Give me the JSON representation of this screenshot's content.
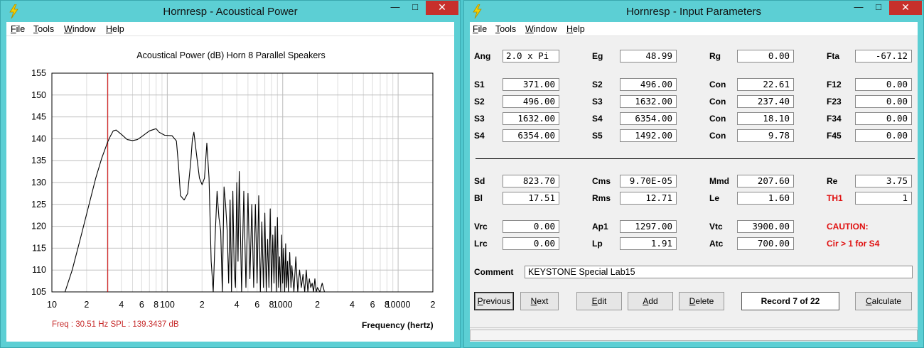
{
  "left_window": {
    "title": "Hornresp - Acoustical Power",
    "controls": {
      "minimize": "—",
      "maximize": "□",
      "close": "✕"
    },
    "menu": [
      {
        "label": "File",
        "key": "F",
        "rest": "ile"
      },
      {
        "label": "Tools",
        "key": "T",
        "rest": "ools"
      },
      {
        "label": "Window",
        "key": "W",
        "rest": "indow"
      },
      {
        "label": "Help",
        "key": "H",
        "rest": "elp"
      }
    ],
    "chart_title": "Acoustical Power (dB)   Horn   8 Parallel Speakers",
    "readout": "Freq : 30.51 Hz    SPL : 139.3437 dB",
    "x_unit": "Frequency (hertz)"
  },
  "right_window": {
    "title": "Hornresp - Input Parameters",
    "controls": {
      "minimize": "—",
      "maximize": "□",
      "close": "✕"
    },
    "menu": [
      {
        "label": "File",
        "key": "F",
        "rest": "ile"
      },
      {
        "label": "Tools",
        "key": "T",
        "rest": "ools"
      },
      {
        "label": "Window",
        "key": "W",
        "rest": "indow"
      },
      {
        "label": "Help",
        "key": "H",
        "rest": "elp"
      }
    ],
    "params": {
      "ang": {
        "label": "Ang",
        "value": "2.0 x Pi"
      },
      "eg": {
        "label": "Eg",
        "value": "48.99"
      },
      "rg": {
        "label": "Rg",
        "value": "0.00"
      },
      "fta": {
        "label": "Fta",
        "value": "-67.12"
      },
      "s1": {
        "label": "S1",
        "value": "371.00"
      },
      "s2a": {
        "label": "S2",
        "value": "496.00"
      },
      "con1": {
        "label": "Con",
        "value": "22.61"
      },
      "f12": {
        "label": "F12",
        "value": "0.00"
      },
      "s2b": {
        "label": "S2",
        "value": "496.00"
      },
      "s3a": {
        "label": "S3",
        "value": "1632.00"
      },
      "con2": {
        "label": "Con",
        "value": "237.40"
      },
      "f23": {
        "label": "F23",
        "value": "0.00"
      },
      "s3b": {
        "label": "S3",
        "value": "1632.00"
      },
      "s4a": {
        "label": "S4",
        "value": "6354.00"
      },
      "con3": {
        "label": "Con",
        "value": "18.10"
      },
      "f34": {
        "label": "F34",
        "value": "0.00"
      },
      "s4b": {
        "label": "S4",
        "value": "6354.00"
      },
      "s5": {
        "label": "S5",
        "value": "1492.00"
      },
      "con4": {
        "label": "Con",
        "value": "9.78"
      },
      "f45": {
        "label": "F45",
        "value": "0.00"
      },
      "sd": {
        "label": "Sd",
        "value": "823.70"
      },
      "cms": {
        "label": "Cms",
        "value": "9.70E-05"
      },
      "mmd": {
        "label": "Mmd",
        "value": "207.60"
      },
      "re": {
        "label": "Re",
        "value": "3.75"
      },
      "bl": {
        "label": "Bl",
        "value": "17.51"
      },
      "rms": {
        "label": "Rms",
        "value": "12.71"
      },
      "le": {
        "label": "Le",
        "value": "1.60"
      },
      "th1": {
        "label": "TH1",
        "value": "1"
      },
      "vrc": {
        "label": "Vrc",
        "value": "0.00"
      },
      "ap1": {
        "label": "Ap1",
        "value": "1297.00"
      },
      "vtc": {
        "label": "Vtc",
        "value": "3900.00"
      },
      "lrc": {
        "label": "Lrc",
        "value": "0.00"
      },
      "lp": {
        "label": "Lp",
        "value": "1.91"
      },
      "atc": {
        "label": "Atc",
        "value": "700.00"
      }
    },
    "caution_title": "CAUTION:",
    "caution_text": "Cir > 1 for S4",
    "comment_label": "Comment",
    "comment_value": "KEYSTONE Special Lab15",
    "buttons": {
      "previous": {
        "key": "P",
        "rest": "revious"
      },
      "next": {
        "key": "N",
        "rest": "ext"
      },
      "edit": {
        "key": "E",
        "rest": "dit"
      },
      "add": {
        "key": "A",
        "rest": "dd"
      },
      "delete": {
        "key": "D",
        "rest": "elete"
      },
      "calculate": {
        "key": "C",
        "rest": "alculate"
      }
    },
    "record": "Record 7 of 22"
  },
  "chart_data": {
    "type": "line",
    "title": "Acoustical Power (dB)   Horn   8 Parallel Speakers",
    "xlabel": "Frequency (hertz)",
    "ylabel": "",
    "x_scale": "log",
    "xlim": [
      10,
      20000
    ],
    "ylim": [
      105,
      155
    ],
    "y_ticks": [
      105,
      110,
      115,
      120,
      125,
      130,
      135,
      140,
      145,
      150,
      155
    ],
    "x_tick_labels": [
      {
        "x": 10,
        "label": "10"
      },
      {
        "x": 20,
        "label": "2"
      },
      {
        "x": 40,
        "label": "4"
      },
      {
        "x": 60,
        "label": "6"
      },
      {
        "x": 80,
        "label": "8"
      },
      {
        "x": 100,
        "label": "100"
      },
      {
        "x": 200,
        "label": "2"
      },
      {
        "x": 400,
        "label": "4"
      },
      {
        "x": 600,
        "label": "6"
      },
      {
        "x": 800,
        "label": "8"
      },
      {
        "x": 1000,
        "label": "1000"
      },
      {
        "x": 2000,
        "label": "2"
      },
      {
        "x": 4000,
        "label": "4"
      },
      {
        "x": 6000,
        "label": "6"
      },
      {
        "x": 8000,
        "label": "8"
      },
      {
        "x": 10000,
        "label": "10000"
      },
      {
        "x": 20000,
        "label": "2"
      }
    ],
    "grid": true,
    "cursor": {
      "x": 30.51,
      "y": 139.3437,
      "color": "#d00000"
    },
    "series": [
      {
        "color": "#000000",
        "x": [
          13,
          15,
          18,
          21,
          24,
          27,
          30.5,
          32,
          34,
          36,
          40,
          45,
          50,
          55,
          60,
          70,
          80,
          85,
          95,
          110,
          120,
          125,
          130,
          140,
          150,
          160,
          165,
          170,
          180,
          190,
          200,
          210,
          220,
          230,
          240,
          250,
          260,
          270,
          280,
          290,
          300,
          310,
          320,
          330,
          340,
          350,
          360,
          370,
          380,
          390,
          400,
          410,
          420,
          440,
          460,
          480,
          500,
          520,
          540,
          560,
          580,
          600,
          620,
          640,
          660,
          680,
          700,
          720,
          740,
          760,
          780,
          800,
          820,
          840,
          860,
          880,
          900,
          920,
          940,
          960,
          980,
          1000,
          1020,
          1040,
          1060,
          1080,
          1100,
          1120,
          1150,
          1180,
          1200,
          1250,
          1300,
          1350,
          1400,
          1450,
          1500,
          1550,
          1600,
          1650,
          1700,
          1750,
          1800,
          1850,
          1900,
          1950,
          2000,
          2100,
          2200,
          2300
        ],
        "y": [
          105,
          110,
          118,
          125,
          131,
          135.5,
          139.3,
          140.5,
          141.8,
          142,
          141,
          139.8,
          139.6,
          139.8,
          140.5,
          141.8,
          142.3,
          141.5,
          140.8,
          140.7,
          139.5,
          134,
          127,
          126,
          127.5,
          135,
          140,
          141.5,
          136,
          131,
          129.5,
          131,
          139,
          131,
          112,
          105,
          118,
          128,
          122,
          119,
          105,
          129,
          125,
          119,
          107,
          126,
          105,
          128,
          110,
          106,
          130,
          112,
          132.5,
          105,
          128,
          106,
          127.5,
          108,
          125,
          106,
          125,
          107,
          127,
          105,
          121,
          106,
          123,
          105,
          117,
          106,
          124,
          105,
          118,
          107,
          120,
          105,
          122,
          106,
          113,
          105,
          118,
          107,
          115,
          105,
          116,
          106,
          112,
          105,
          114,
          106,
          111,
          105,
          113,
          105,
          110,
          106,
          109,
          105,
          110,
          105,
          108,
          106,
          107,
          105,
          108,
          105,
          106,
          105,
          107,
          105
        ]
      }
    ]
  }
}
